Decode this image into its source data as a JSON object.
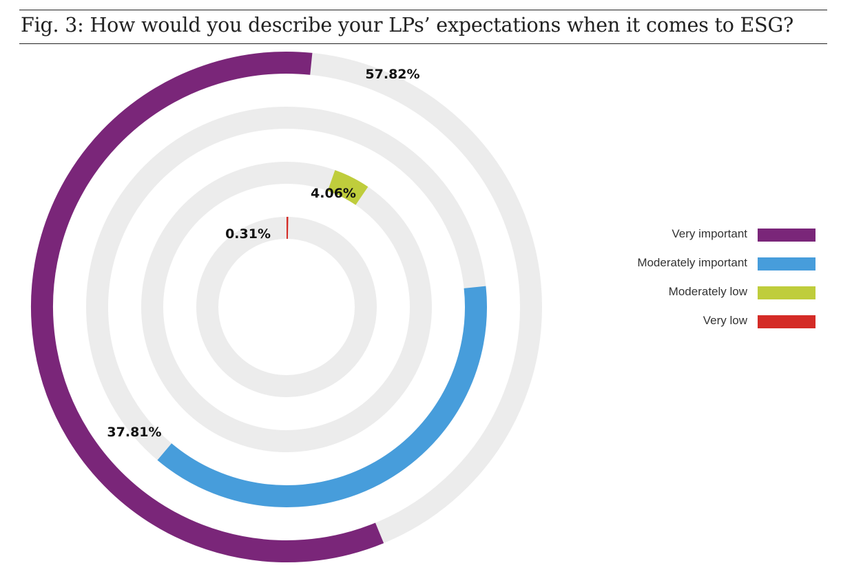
{
  "title": "Fig. 3: How would you describe your LPs’ expectations when it comes to ESG?",
  "chart_data": {
    "type": "radial-bar",
    "title": "Fig. 3: How would you describe your LPs’ expectations when it comes to ESG?",
    "categories": [
      "Very important",
      "Moderately important",
      "Moderately low",
      "Very low"
    ],
    "values": [
      57.82,
      37.81,
      4.06,
      0.31
    ],
    "labels": [
      "57.82%",
      "37.81%",
      "4.06%",
      "0.31%"
    ],
    "colors": [
      "#7a2679",
      "#479ddb",
      "#bfcd3c",
      "#d42b26"
    ],
    "track_color": "#ececec",
    "legend_position": "right"
  }
}
